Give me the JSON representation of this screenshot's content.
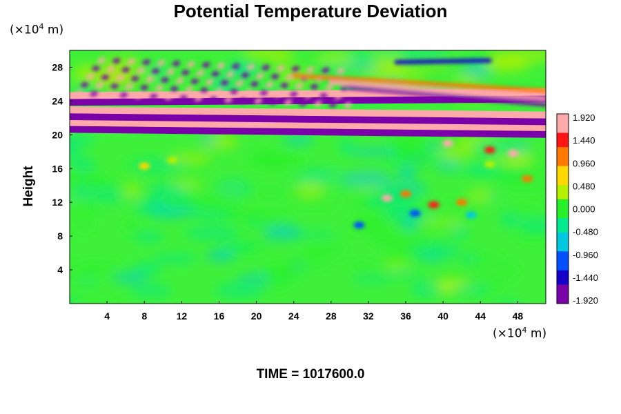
{
  "title": "Potential Temperature Deviation",
  "y_unit": {
    "prefix": "(×10",
    "exp": "4",
    "suffix": " m)"
  },
  "x_unit": {
    "prefix": "(×10",
    "exp": "4",
    "suffix": " m)"
  },
  "time_label": "TIME = 1017600.0",
  "chart_data": {
    "type": "heatmap",
    "title": "Potential Temperature Deviation",
    "xlabel": "",
    "ylabel": "Height",
    "x_unit": "×10^4 m",
    "y_unit": "×10^4 m",
    "xlim": [
      0,
      51
    ],
    "ylim": [
      0,
      30
    ],
    "x_ticks": [
      4,
      8,
      12,
      16,
      20,
      24,
      28,
      32,
      36,
      40,
      44,
      48
    ],
    "y_ticks": [
      4,
      8,
      12,
      16,
      20,
      24,
      28
    ],
    "colorbar": {
      "min": -1.92,
      "max": 1.92,
      "tick_labels": [
        "1.920",
        "1.440",
        "0.960",
        "0.480",
        "0.000",
        "-0.480",
        "-0.960",
        "-1.440",
        "-1.920"
      ],
      "colors": [
        "#7a00a8",
        "#1400c8",
        "#0050ff",
        "#00c8e0",
        "#00e890",
        "#28f028",
        "#b4f000",
        "#ffd800",
        "#ff7800",
        "#ff1414",
        "#ffaaaa"
      ]
    },
    "bands": [
      {
        "y": 20.4,
        "value": -1.92
      },
      {
        "y": 21.2,
        "value": 1.92
      },
      {
        "y": 21.9,
        "value": -1.92
      },
      {
        "y": 22.7,
        "value": 1.92
      },
      {
        "y": 23.6,
        "value": -1.92
      },
      {
        "y": 24.4,
        "value": 1.92
      }
    ],
    "field_level": {
      "below_20": -0.1
    }
  }
}
